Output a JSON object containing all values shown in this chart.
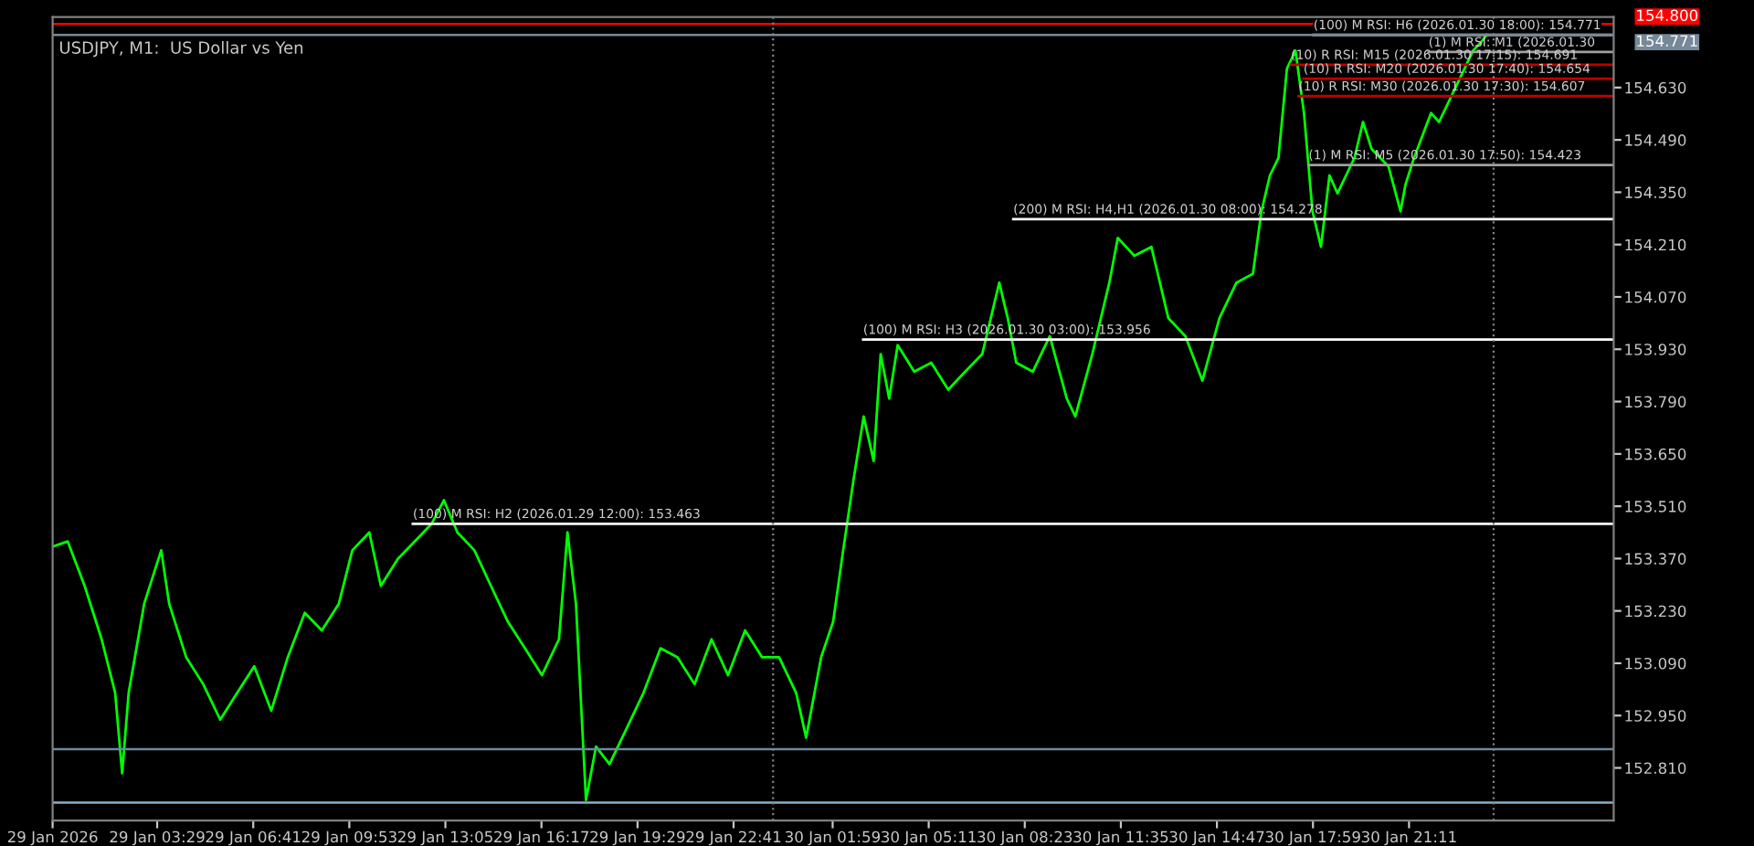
{
  "chart_data": {
    "type": "line",
    "title": "USDJPY, M1:  US Dollar vs Yen",
    "xlim": [
      "2026-01-29T00:00",
      "2026-01-31T04:00"
    ],
    "xticks": [
      {
        "value": "2026-01-29T00:00",
        "label": "29 Jan 2026"
      },
      {
        "value": "2026-01-29T03:29",
        "label": "29 Jan 03:29"
      },
      {
        "value": "2026-01-29T06:41",
        "label": "29 Jan 06:41"
      },
      {
        "value": "2026-01-29T09:53",
        "label": "29 Jan 09:53"
      },
      {
        "value": "2026-01-29T13:05",
        "label": "29 Jan 13:05"
      },
      {
        "value": "2026-01-29T16:17",
        "label": "29 Jan 16:17"
      },
      {
        "value": "2026-01-29T19:29",
        "label": "29 Jan 19:29"
      },
      {
        "value": "2026-01-29T22:41",
        "label": "29 Jan 22:41"
      },
      {
        "value": "2026-01-30T01:59",
        "label": "30 Jan 01:59"
      },
      {
        "value": "2026-01-30T05:11",
        "label": "30 Jan 05:11"
      },
      {
        "value": "2026-01-30T08:23",
        "label": "30 Jan 08:23"
      },
      {
        "value": "2026-01-30T11:35",
        "label": "30 Jan 11:35"
      },
      {
        "value": "2026-01-30T14:47",
        "label": "30 Jan 14:47"
      },
      {
        "value": "2026-01-30T17:59",
        "label": "30 Jan 17:59"
      },
      {
        "value": "2026-01-30T21:11",
        "label": "30 Jan 21:11"
      }
    ],
    "ylim": [
      152.669,
      154.819
    ],
    "yticks": [
      {
        "value": 152.81,
        "label": "152.810"
      },
      {
        "value": 152.95,
        "label": "152.950"
      },
      {
        "value": 153.09,
        "label": "153.090"
      },
      {
        "value": 153.23,
        "label": "153.230"
      },
      {
        "value": 153.37,
        "label": "153.370"
      },
      {
        "value": 153.51,
        "label": "153.510"
      },
      {
        "value": 153.65,
        "label": "153.650"
      },
      {
        "value": 153.79,
        "label": "153.790"
      },
      {
        "value": 153.93,
        "label": "153.930"
      },
      {
        "value": 154.07,
        "label": "154.070"
      },
      {
        "value": 154.21,
        "label": "154.210"
      },
      {
        "value": 154.35,
        "label": "154.350"
      },
      {
        "value": 154.49,
        "label": "154.490"
      },
      {
        "value": 154.63,
        "label": "154.630"
      }
    ],
    "grid": false,
    "legend": false,
    "series": [
      {
        "color": "#00ff00",
        "x": [
          "2026-01-29T00:00",
          "2026-01-29T00:30",
          "2026-01-29T01:04",
          "2026-01-29T01:38",
          "2026-01-29T02:05",
          "2026-01-29T02:19",
          "2026-01-29T02:32",
          "2026-01-29T03:03",
          "2026-01-29T03:37",
          "2026-01-29T03:53",
          "2026-01-29T04:27",
          "2026-01-29T05:01",
          "2026-01-29T05:35",
          "2026-01-29T06:09",
          "2026-01-29T06:43",
          "2026-01-29T07:17",
          "2026-01-29T07:50",
          "2026-01-29T08:24",
          "2026-01-29T08:58",
          "2026-01-29T09:32",
          "2026-01-29T09:59",
          "2026-01-29T10:33",
          "2026-01-29T10:56",
          "2026-01-29T11:30",
          "2026-01-29T12:04",
          "2026-01-29T12:38",
          "2026-01-29T13:02",
          "2026-01-29T13:29",
          "2026-01-29T14:03",
          "2026-01-29T14:36",
          "2026-01-29T15:10",
          "2026-01-29T15:44",
          "2026-01-29T16:18",
          "2026-01-29T16:52",
          "2026-01-29T17:09",
          "2026-01-29T17:26",
          "2026-01-29T17:46",
          "2026-01-29T18:06",
          "2026-01-29T18:33",
          "2026-01-29T19:07",
          "2026-01-29T19:41",
          "2026-01-29T20:15",
          "2026-01-29T20:49",
          "2026-01-29T21:23",
          "2026-01-29T21:57",
          "2026-01-29T22:30",
          "2026-01-29T23:04",
          "2026-01-29T23:38",
          "2026-01-30T00:12",
          "2026-01-30T00:46",
          "2026-01-30T01:06",
          "2026-01-30T01:36",
          "2026-01-30T02:00",
          "2026-01-30T02:20",
          "2026-01-30T02:41",
          "2026-01-30T03:01",
          "2026-01-30T03:21",
          "2026-01-30T03:35",
          "2026-01-30T03:52",
          "2026-01-30T04:09",
          "2026-01-30T04:42",
          "2026-01-30T05:16",
          "2026-01-30T05:50",
          "2026-01-30T06:24",
          "2026-01-30T06:58",
          "2026-01-30T07:32",
          "2026-01-30T07:49",
          "2026-01-30T08:06",
          "2026-01-30T08:39",
          "2026-01-30T09:13",
          "2026-01-30T09:47",
          "2026-01-30T10:04",
          "2026-01-30T10:38",
          "2026-01-30T11:12",
          "2026-01-30T11:29",
          "2026-01-30T12:02",
          "2026-01-30T12:36",
          "2026-01-30T13:10",
          "2026-01-30T13:44",
          "2026-01-30T14:18",
          "2026-01-30T14:52",
          "2026-01-30T15:26",
          "2026-01-30T15:59",
          "2026-01-30T16:16",
          "2026-01-30T16:33",
          "2026-01-30T16:50",
          "2026-01-30T17:07",
          "2026-01-30T17:24",
          "2026-01-30T17:41",
          "2026-01-30T17:58",
          "2026-01-30T18:15",
          "2026-01-30T18:32",
          "2026-01-30T18:48",
          "2026-01-30T19:22",
          "2026-01-30T19:39",
          "2026-01-30T19:56",
          "2026-01-30T20:30",
          "2026-01-30T20:54",
          "2026-01-30T21:04",
          "2026-01-30T21:21",
          "2026-01-30T21:55",
          "2026-01-30T22:11",
          "2026-01-30T22:45",
          "2026-01-30T23:19",
          "2026-01-30T23:36",
          "2026-01-30T23:46"
        ],
        "values": [
          153.402,
          153.416,
          153.297,
          153.154,
          153.011,
          152.796,
          153.011,
          153.249,
          153.392,
          153.249,
          153.106,
          153.034,
          152.939,
          153.011,
          153.082,
          152.963,
          153.106,
          153.225,
          153.178,
          153.249,
          153.392,
          153.44,
          153.297,
          153.369,
          153.416,
          153.464,
          153.526,
          153.44,
          153.392,
          153.297,
          153.201,
          153.13,
          153.058,
          153.154,
          153.44,
          153.249,
          152.724,
          152.867,
          152.82,
          152.915,
          153.011,
          153.13,
          153.106,
          153.034,
          153.154,
          153.058,
          153.178,
          153.106,
          153.106,
          153.011,
          152.891,
          153.106,
          153.201,
          153.392,
          153.583,
          153.75,
          153.631,
          153.917,
          153.798,
          153.941,
          153.87,
          153.894,
          153.822,
          153.87,
          153.917,
          154.108,
          154.013,
          153.894,
          153.87,
          153.965,
          153.798,
          153.75,
          153.917,
          154.108,
          154.228,
          154.18,
          154.204,
          154.013,
          153.965,
          153.846,
          154.013,
          154.108,
          154.132,
          154.299,
          154.395,
          154.442,
          154.681,
          154.729,
          154.562,
          154.299,
          154.204,
          154.395,
          154.347,
          154.442,
          154.538,
          154.466,
          154.419,
          154.299,
          154.371,
          154.442,
          154.562,
          154.538,
          154.633,
          154.729,
          154.753,
          154.771
        ]
      },
      {
        "name": "(100) M RSI: H2 (2026.01.29 12:00): 153.463",
        "color": "#ffffff",
        "x": [
          "2026-01-29T12:00",
          "2026-01-31T04:00"
        ],
        "values": [
          153.463,
          153.463
        ]
      },
      {
        "name": "(100) M RSI: H3 (2026.01.30 03:00): 153.956",
        "color": "#ffffff",
        "x": [
          "2026-01-30T03:00",
          "2026-01-31T04:00"
        ],
        "values": [
          153.956,
          153.956
        ]
      },
      {
        "name": "(200) M RSI: H4,H1 (2026.01.30 08:00): 154.278",
        "color": "#ffffff",
        "x": [
          "2026-01-30T08:00",
          "2026-01-31T04:00"
        ],
        "values": [
          154.278,
          154.278
        ]
      },
      {
        "name": "(1) M RSI: M5 (2026.01.30 17:50): 154.423",
        "color": "#a0a0a0",
        "x": [
          "2026-01-30T17:50",
          "2026-01-31T04:00"
        ],
        "values": [
          154.423,
          154.423
        ]
      },
      {
        "name": "(10) R RSI: M30 (2026.01.30 17:30): 154.607",
        "color": "#c00000",
        "x": [
          "2026-01-30T17:30",
          "2026-01-31T04:00"
        ],
        "values": [
          154.607,
          154.607
        ]
      },
      {
        "name": "(10) R RSI: M20 (2026.01.30 17:40): 154.654",
        "color": "#c00000",
        "x": [
          "2026-01-30T17:40",
          "2026-01-31T04:00"
        ],
        "values": [
          154.654,
          154.654
        ]
      },
      {
        "name": "(10) R RSI: M15 (2026.01.30 17:15): 154.691",
        "color": "#c00000",
        "x": [
          "2026-01-30T17:15",
          "2026-01-31T04:00"
        ],
        "values": [
          154.691,
          154.691
        ]
      },
      {
        "name": "(1) M RSI: M1 (2026.01.30",
        "color": "#a0a0a0",
        "x": [
          "2026-01-30T21:50",
          "2026-01-31T04:00"
        ],
        "values": [
          154.725,
          154.725
        ]
      },
      {
        "name": "(100) M RSI: H6 (2026.01.30 18:00): 154.771",
        "color": "#ffffff",
        "x": [
          "2026-01-30T18:00",
          "2026-01-31T04:00"
        ],
        "values": [
          154.771,
          154.771
        ]
      }
    ],
    "ref_lines": [
      {
        "axis": "y",
        "value": 154.8,
        "label": "154.800",
        "color": "#ff0000",
        "line_style": "solid"
      },
      {
        "axis": "y",
        "value": 154.771,
        "label": "154.771",
        "color": "#778899",
        "line_style": "solid"
      },
      {
        "axis": "y",
        "value": 152.86,
        "color": "#6a8aa0",
        "line_style": "solid"
      },
      {
        "axis": "y",
        "value": 152.717,
        "color": "#8ab0c8",
        "line_style": "solid"
      },
      {
        "axis": "x",
        "value": "2026-01-30T00:00",
        "color": "#808080",
        "line_style": "dotted"
      },
      {
        "axis": "x",
        "value": "2026-01-31T00:00",
        "color": "#808080",
        "line_style": "dotted"
      }
    ]
  }
}
